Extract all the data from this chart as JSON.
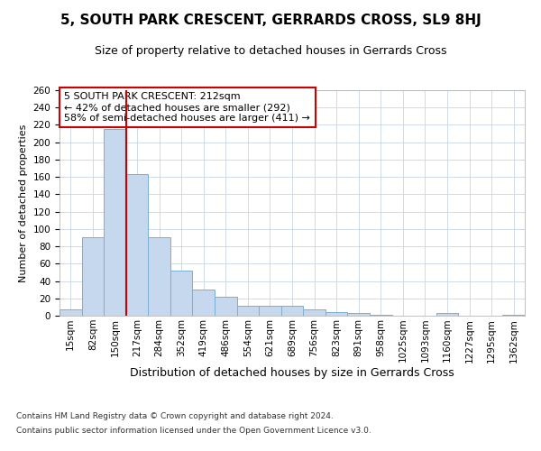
{
  "title": "5, SOUTH PARK CRESCENT, GERRARDS CROSS, SL9 8HJ",
  "subtitle": "Size of property relative to detached houses in Gerrards Cross",
  "xlabel": "Distribution of detached houses by size in Gerrards Cross",
  "ylabel": "Number of detached properties",
  "categories": [
    "15sqm",
    "82sqm",
    "150sqm",
    "217sqm",
    "284sqm",
    "352sqm",
    "419sqm",
    "486sqm",
    "554sqm",
    "621sqm",
    "689sqm",
    "756sqm",
    "823sqm",
    "891sqm",
    "958sqm",
    "1025sqm",
    "1093sqm",
    "1160sqm",
    "1227sqm",
    "1295sqm",
    "1362sqm"
  ],
  "values": [
    7,
    91,
    215,
    163,
    90,
    52,
    30,
    22,
    11,
    11,
    11,
    7,
    4,
    3,
    1,
    0,
    0,
    3,
    0,
    0,
    1
  ],
  "bar_color": "#c5d8ed",
  "bar_edge_color": "#7bafd4",
  "vline_color": "#cc0000",
  "vline_x_index": 2,
  "annotation_text": "5 SOUTH PARK CRESCENT: 212sqm\n← 42% of detached houses are smaller (292)\n58% of semi-detached houses are larger (411) →",
  "annotation_box_color": "#ffffff",
  "annotation_box_edge": "#cc0000",
  "footer_line1": "Contains HM Land Registry data © Crown copyright and database right 2024.",
  "footer_line2": "Contains public sector information licensed under the Open Government Licence v3.0.",
  "ylim": [
    0,
    260
  ],
  "yticks": [
    0,
    20,
    40,
    60,
    80,
    100,
    120,
    140,
    160,
    180,
    200,
    220,
    240,
    260
  ],
  "title_fontsize": 11,
  "subtitle_fontsize": 9,
  "xlabel_fontsize": 9,
  "ylabel_fontsize": 8,
  "tick_fontsize": 7.5,
  "annotation_fontsize": 8,
  "footer_fontsize": 6.5,
  "background_color": "#ffffff",
  "grid_color": "#c8d4e3"
}
